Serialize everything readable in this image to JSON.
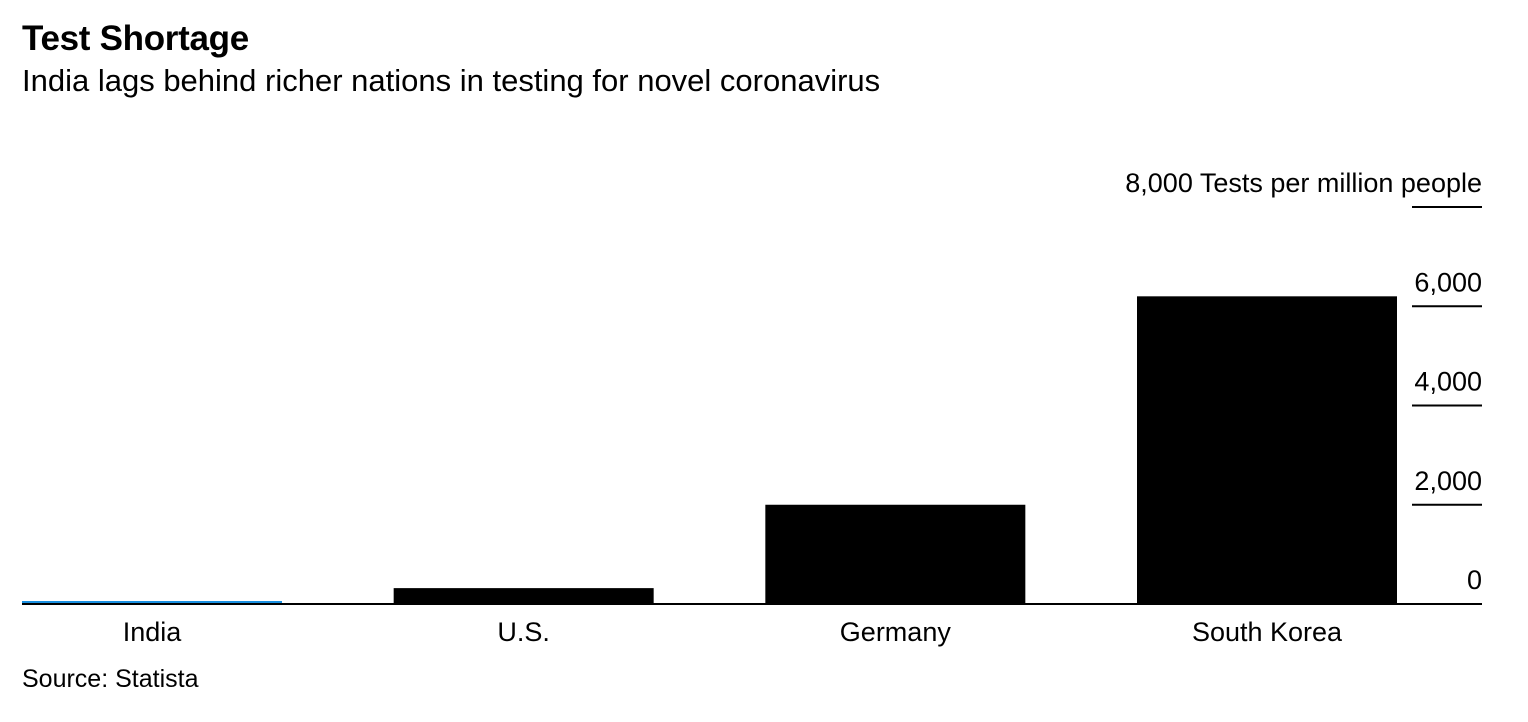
{
  "chart_data": {
    "type": "bar",
    "title": "Test Shortage",
    "subtitle": "India lags behind richer nations in testing for novel coronavirus",
    "source": "Source: Statista",
    "categories": [
      "India",
      "U.S.",
      "Germany",
      "South Korea"
    ],
    "values": [
      10,
      320,
      2000,
      6200
    ],
    "ylabel": "Tests per million people",
    "ylim": [
      0,
      8000
    ],
    "yticks": [
      {
        "value": 0,
        "label": "0"
      },
      {
        "value": 2000,
        "label": "2,000"
      },
      {
        "value": 4000,
        "label": "4,000"
      },
      {
        "value": 6000,
        "label": "6,000"
      },
      {
        "value": 8000,
        "label": "8,000"
      }
    ],
    "grid": false,
    "legend": "none",
    "colors": {
      "bar": "#000000",
      "highlight": "#1a8fe0",
      "axis": "#000000"
    },
    "highlight_category": "India"
  }
}
